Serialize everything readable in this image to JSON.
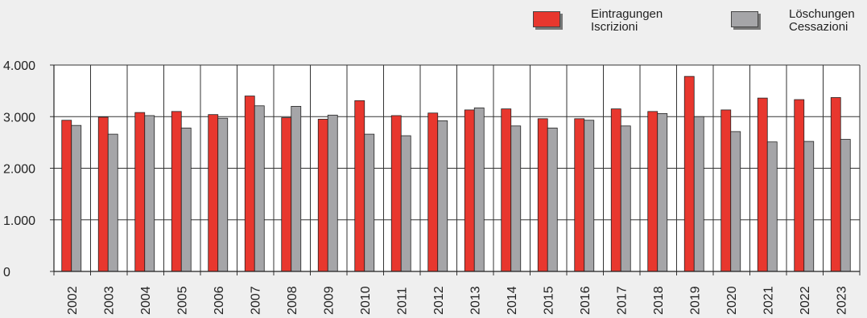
{
  "legend": [
    {
      "line1": "Eintragungen",
      "line2": "Iscrizioni",
      "color": "#e8372e"
    },
    {
      "line1": "Löschungen",
      "line2": "Cessazioni",
      "color": "#a5a5a8"
    }
  ],
  "chart_data": {
    "type": "bar",
    "categories": [
      "2002",
      "2003",
      "2004",
      "2005",
      "2006",
      "2007",
      "2008",
      "2009",
      "2010",
      "2011",
      "2012",
      "2013",
      "2014",
      "2015",
      "2016",
      "2017",
      "2018",
      "2019",
      "2020",
      "2021",
      "2022",
      "2023"
    ],
    "series": [
      {
        "name": "Eintragungen / Iscrizioni",
        "color": "#e8372e",
        "values": [
          2930,
          2990,
          3080,
          3100,
          3040,
          3400,
          2980,
          2950,
          3310,
          3020,
          3070,
          3130,
          3150,
          2960,
          2960,
          3150,
          3100,
          3780,
          3130,
          3360,
          3330,
          3370
        ]
      },
      {
        "name": "Löschungen / Cessazioni",
        "color": "#a5a5a8",
        "values": [
          2830,
          2660,
          3020,
          2780,
          2970,
          3210,
          3200,
          3030,
          2660,
          2630,
          2920,
          3170,
          2820,
          2780,
          2930,
          2820,
          3060,
          3000,
          2710,
          2510,
          2520,
          2560
        ]
      }
    ],
    "ylim": [
      0,
      4000
    ],
    "yticks": [
      0,
      1000,
      2000,
      3000,
      4000
    ],
    "ytick_labels": [
      "0",
      "1.000",
      "2.000",
      "3.000",
      "4.000"
    ],
    "grid": true,
    "legend_position": "top-right",
    "xlabel": "",
    "ylabel": "",
    "title": ""
  }
}
